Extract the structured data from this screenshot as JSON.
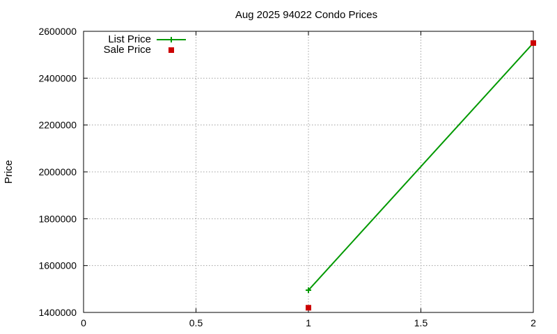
{
  "chart_data": {
    "type": "line",
    "title": "Aug 2025 94022 Condo Prices",
    "xlabel": "",
    "ylabel": "Price",
    "xlim": [
      0,
      2
    ],
    "ylim": [
      1400000,
      2600000
    ],
    "xticks": [
      0,
      0.5,
      1,
      1.5,
      2
    ],
    "xtick_labels": [
      "0",
      "0.5",
      "1",
      "1.5",
      "2"
    ],
    "yticks": [
      1400000,
      1600000,
      1800000,
      2000000,
      2200000,
      2400000,
      2600000
    ],
    "ytick_labels": [
      "1400000",
      "1600000",
      "1800000",
      "2000000",
      "2200000",
      "2400000",
      "2600000"
    ],
    "grid": true,
    "legend_position": "top-left",
    "series": [
      {
        "name": "List Price",
        "style": "line-with-plus-markers",
        "color": "#009900",
        "points": [
          {
            "x": 1,
            "y": 1495000
          },
          {
            "x": 2,
            "y": 2550000
          }
        ]
      },
      {
        "name": "Sale Price",
        "style": "square-markers",
        "color": "#cc0000",
        "points": [
          {
            "x": 1,
            "y": 1420000
          },
          {
            "x": 2,
            "y": 2550000
          }
        ]
      }
    ]
  }
}
